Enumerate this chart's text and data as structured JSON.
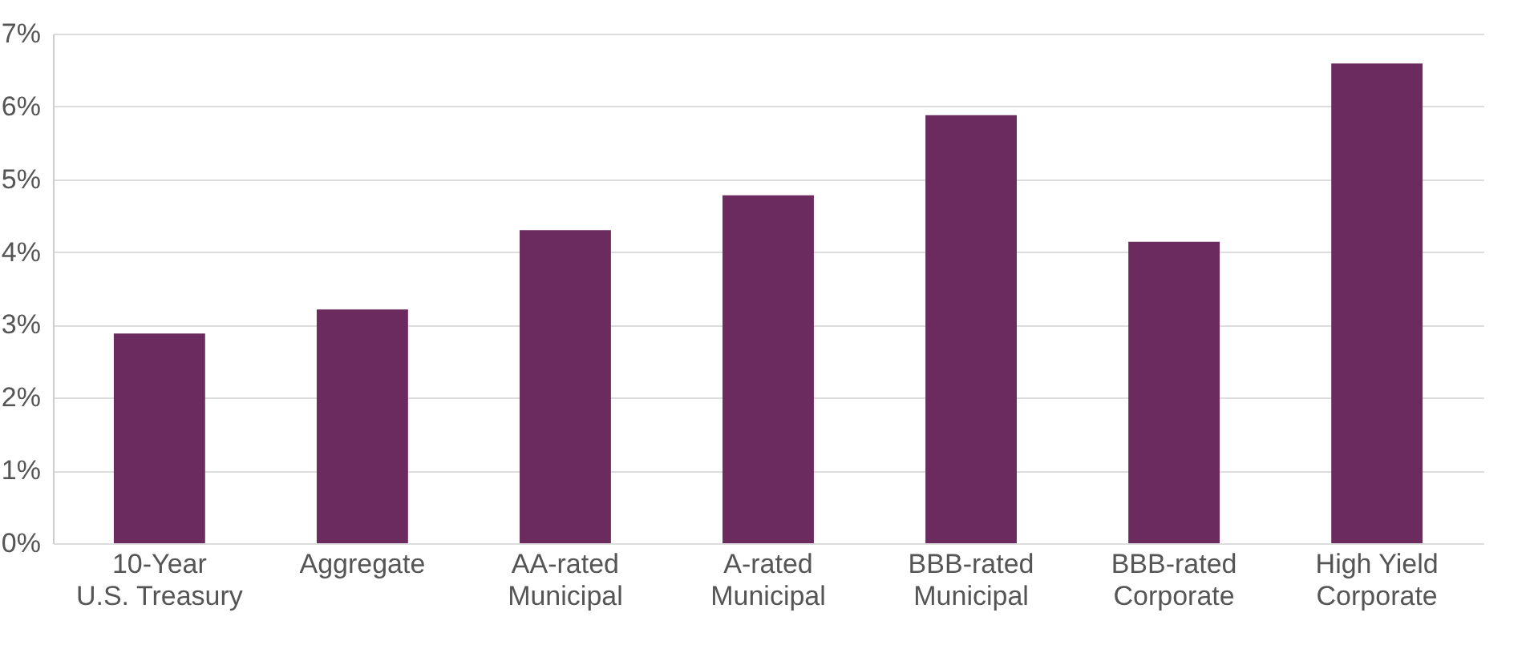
{
  "chart_data": {
    "type": "bar",
    "categories": [
      "10-Year\nU.S. Treasury",
      "Aggregate",
      "AA-rated\nMunicipal",
      "A-rated\nMunicipal",
      "BBB-rated\nMunicipal",
      "BBB-rated\nCorporate",
      "High Yield\nCorporate"
    ],
    "values": [
      2.88,
      3.21,
      4.3,
      4.78,
      5.88,
      4.14,
      6.59
    ],
    "color": "#6b2b5e",
    "ylim": [
      0,
      7
    ],
    "yticks": [
      {
        "value": 0,
        "label": "0%"
      },
      {
        "value": 1,
        "label": "1%"
      },
      {
        "value": 2,
        "label": "2%"
      },
      {
        "value": 3,
        "label": "3%"
      },
      {
        "value": 4,
        "label": "4%"
      },
      {
        "value": 5,
        "label": "5%"
      },
      {
        "value": 6,
        "label": "6%"
      },
      {
        "value": 7,
        "label": "7%"
      }
    ],
    "grid": true
  }
}
